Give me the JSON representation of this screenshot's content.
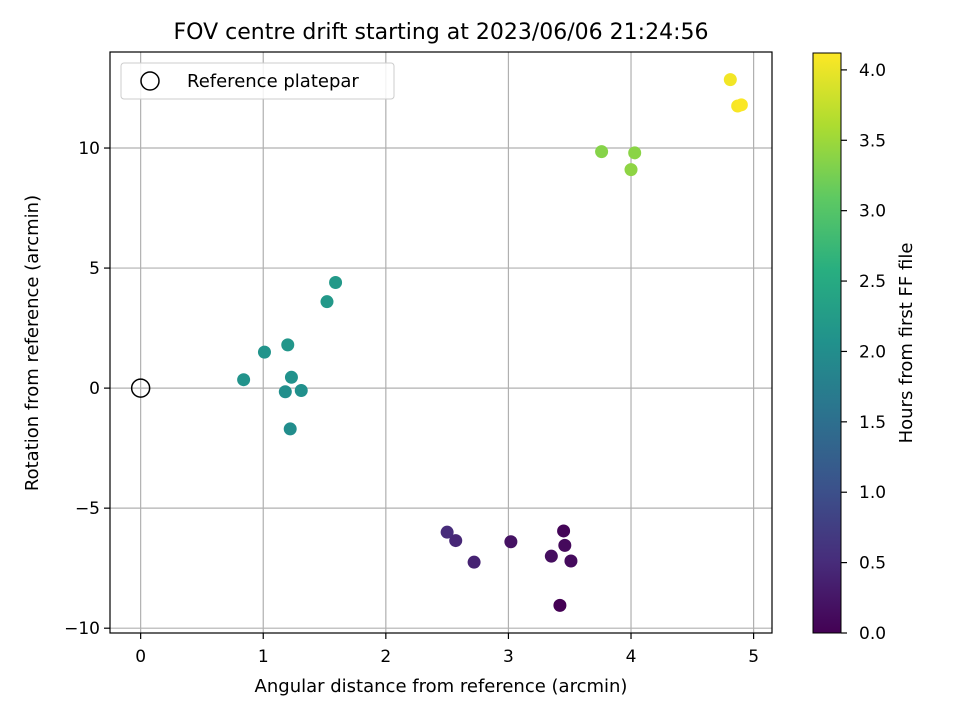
{
  "chart_data": {
    "type": "scatter",
    "title": "FOV centre drift starting at 2023/06/06 21:24:56",
    "xlabel": "Angular distance from reference (arcmin)",
    "ylabel": "Rotation from reference (arcmin)",
    "xlim": [
      -0.25,
      5.15
    ],
    "ylim": [
      -10.2,
      14.0
    ],
    "xticks": [
      0,
      1,
      2,
      3,
      4,
      5
    ],
    "xtick_labels": [
      "0",
      "1",
      "2",
      "3",
      "4",
      "5"
    ],
    "yticks": [
      -10,
      -5,
      0,
      5,
      10
    ],
    "ytick_labels": [
      "−10",
      "−5",
      "0",
      "5",
      "10"
    ],
    "grid": true,
    "legend": {
      "placement": "top-left",
      "entries": [
        "Reference platepar"
      ]
    },
    "reference_point": {
      "name": "Reference platepar",
      "x": 0,
      "y": 0
    },
    "colorbar": {
      "label": "Hours from first FF file",
      "colormap": "viridis",
      "range": [
        0.0,
        4.12
      ],
      "ticks": [
        0.0,
        0.5,
        1.0,
        1.5,
        2.0,
        2.5,
        3.0,
        3.5,
        4.0
      ],
      "tick_labels": [
        "0.0",
        "0.5",
        "1.0",
        "1.5",
        "2.0",
        "2.5",
        "3.0",
        "3.5",
        "4.0"
      ]
    },
    "points": [
      {
        "x": 3.42,
        "y": -9.05,
        "hours": 0.0
      },
      {
        "x": 3.45,
        "y": -5.95,
        "hours": 0.05
      },
      {
        "x": 3.46,
        "y": -6.55,
        "hours": 0.1
      },
      {
        "x": 3.51,
        "y": -7.2,
        "hours": 0.12
      },
      {
        "x": 3.35,
        "y": -7.0,
        "hours": 0.15
      },
      {
        "x": 3.02,
        "y": -6.4,
        "hours": 0.2
      },
      {
        "x": 2.72,
        "y": -7.25,
        "hours": 0.4
      },
      {
        "x": 2.57,
        "y": -6.35,
        "hours": 0.45
      },
      {
        "x": 2.5,
        "y": -6.0,
        "hours": 0.5
      },
      {
        "x": 1.22,
        "y": -1.7,
        "hours": 2.0
      },
      {
        "x": 1.18,
        "y": -0.15,
        "hours": 2.02
      },
      {
        "x": 1.31,
        "y": -0.1,
        "hours": 2.05
      },
      {
        "x": 1.23,
        "y": 0.45,
        "hours": 2.08
      },
      {
        "x": 0.84,
        "y": 0.35,
        "hours": 2.1
      },
      {
        "x": 1.01,
        "y": 1.5,
        "hours": 2.12
      },
      {
        "x": 1.2,
        "y": 1.8,
        "hours": 2.15
      },
      {
        "x": 1.52,
        "y": 3.6,
        "hours": 2.18
      },
      {
        "x": 1.59,
        "y": 4.4,
        "hours": 2.2
      },
      {
        "x": 3.76,
        "y": 9.85,
        "hours": 3.35
      },
      {
        "x": 4.03,
        "y": 9.8,
        "hours": 3.38
      },
      {
        "x": 4.0,
        "y": 9.1,
        "hours": 3.4
      },
      {
        "x": 4.81,
        "y": 12.85,
        "hours": 4.05
      },
      {
        "x": 4.87,
        "y": 11.75,
        "hours": 4.08
      },
      {
        "x": 4.9,
        "y": 11.8,
        "hours": 4.1
      }
    ]
  }
}
